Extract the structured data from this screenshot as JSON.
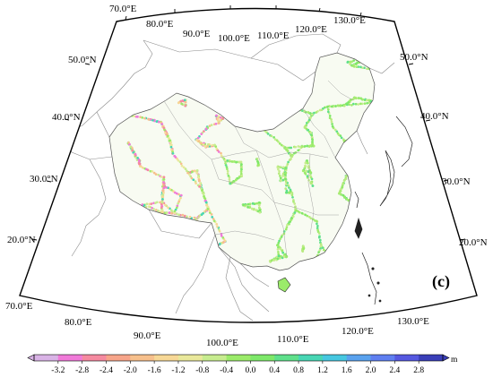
{
  "panel_label": "(c)",
  "top_lon_labels": [
    "70.0°E",
    "80.0°E",
    "90.0°E",
    "100.0°E",
    "110.0°E",
    "120.0°E",
    "130.0°E"
  ],
  "bottom_lon_labels": [
    "70.0°E",
    "80.0°E",
    "90.0°E",
    "100.0°E",
    "110.0°E",
    "120.0°E",
    "130.0°E"
  ],
  "left_lat_labels": [
    "50.0°N",
    "40.0°N",
    "30.0°N",
    "20.0°N"
  ],
  "right_lat_labels": [
    "50.0°N",
    "40.0°N",
    "30.0°N",
    "20.0°N"
  ],
  "colorbar": {
    "ticks": [
      "-3.2",
      "-2.8",
      "-2.4",
      "-2.0",
      "-1.6",
      "-1.2",
      "-0.8",
      "-0.4",
      "0.0",
      "0.4",
      "0.8",
      "1.2",
      "1.6",
      "2.0",
      "2.4",
      "2.8"
    ],
    "unit": "m",
    "colors": [
      "#d9b3e6",
      "#f07ad9",
      "#f58aa0",
      "#f7a58a",
      "#f7c08c",
      "#f7d896",
      "#e9e89b",
      "#c7ec8f",
      "#9beb6a",
      "#7ee86a",
      "#5fe08b",
      "#48d6b4",
      "#46c7e0",
      "#5aa2ee",
      "#5f7ff0",
      "#5558e0",
      "#3a3fb8"
    ]
  }
}
